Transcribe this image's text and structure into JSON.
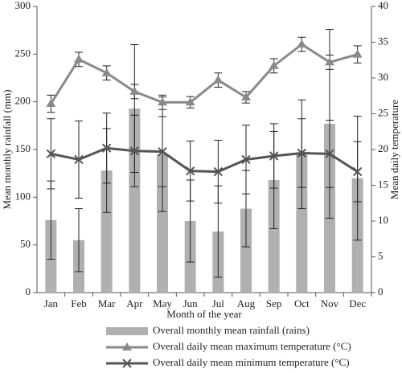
{
  "chart_data": {
    "type": "combo",
    "x_label": "Month of the year",
    "y_label": "Mean monthly rainfall (mm)",
    "y2_label": "Mean daily temperature",
    "categories": [
      "Jan",
      "Feb",
      "Mar",
      "Apr",
      "May",
      "Jun",
      "Jul",
      "Aug",
      "Sep",
      "Oct",
      "Nov",
      "Dec"
    ],
    "ylim": [
      0,
      300
    ],
    "yticks": [
      0,
      50,
      100,
      150,
      200,
      250,
      300
    ],
    "y2lim": [
      0,
      40
    ],
    "y2ticks": [
      0,
      5,
      10,
      15,
      20,
      25,
      30,
      35,
      40
    ],
    "series": [
      {
        "name": "Overall monthly mean rainfall (rains)",
        "type": "bar",
        "color": "#b0b0b0",
        "values": [
          76,
          55,
          128,
          193,
          145,
          75,
          64,
          88,
          118,
          145,
          177,
          120
        ],
        "errors": [
          41,
          33,
          44,
          67,
          60,
          43,
          48,
          40,
          51,
          57,
          99,
          65
        ]
      },
      {
        "name": "Overall daily mean maximum temperature (°C)",
        "type": "line",
        "marker": "triangle",
        "axis": "y2",
        "color": "#8a8a8a",
        "values": [
          26.4,
          32.6,
          30.7,
          28.1,
          26.6,
          26.6,
          29.7,
          27.3,
          31.7,
          34.7,
          32.2,
          33.3
        ],
        "errors": [
          1.2,
          1.0,
          1.0,
          1.0,
          1.0,
          0.8,
          1.0,
          0.8,
          1.0,
          1.0,
          1.0,
          1.2
        ]
      },
      {
        "name": "Overall daily mean minimum temperature (°C)",
        "type": "line",
        "marker": "x",
        "axis": "y2",
        "color": "#555555",
        "values": [
          19.4,
          18.6,
          20.2,
          19.8,
          19.7,
          17.0,
          16.9,
          18.6,
          19.1,
          19.5,
          19.4,
          16.9
        ],
        "errors": [
          4.9,
          5.4,
          4.9,
          5.0,
          4.9,
          4.2,
          4.4,
          4.8,
          4.5,
          4.8,
          4.7,
          4.2
        ]
      }
    ]
  }
}
